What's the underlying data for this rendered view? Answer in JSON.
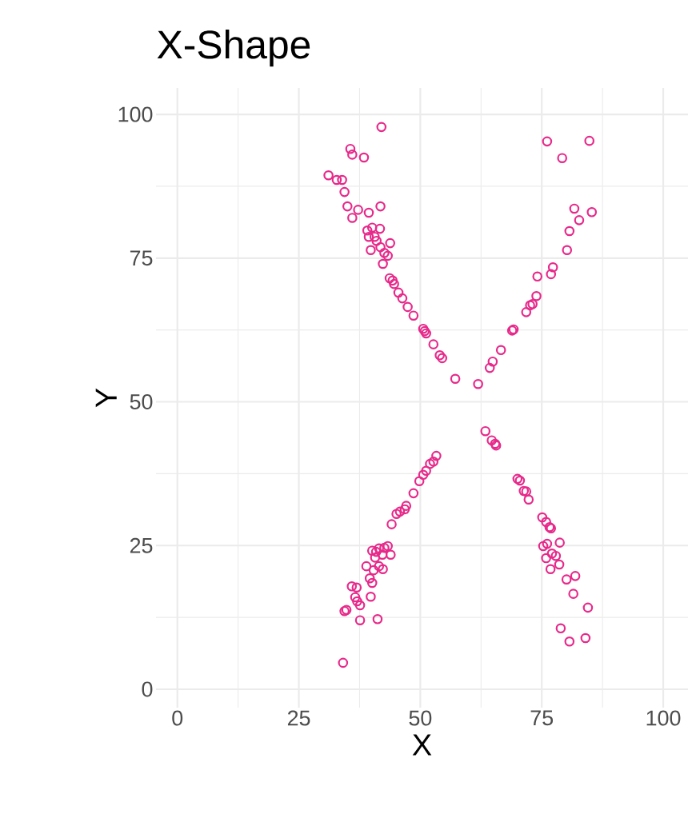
{
  "chart_data": {
    "type": "scatter",
    "title": "X-Shape",
    "xlabel": "X",
    "ylabel": "Y",
    "xlim": [
      -4.4,
      105.1
    ],
    "ylim": [
      -3.2,
      104.6
    ],
    "xticks": [
      0,
      25,
      50,
      75,
      100
    ],
    "yticks": [
      0,
      25,
      50,
      75,
      100
    ],
    "grid": true,
    "marker": "circle",
    "color": "#e7298a",
    "x": [
      42,
      35.6,
      36,
      38.4,
      31.1,
      32.8,
      33.9,
      34.4,
      35,
      36,
      37.2,
      39.4,
      41.8,
      39.1,
      39.4,
      39.8,
      40.1,
      40.6,
      41,
      41.7,
      41.8,
      42.6,
      42.3,
      43.8,
      43.3,
      43.7,
      44.3,
      44.6,
      45.5,
      46.3,
      47.4,
      48.6,
      50.6,
      50.9,
      51.2,
      52.7,
      54,
      54.5,
      57.2,
      61.9,
      64.3,
      64.9,
      66.6,
      68.9,
      69.2,
      71.8,
      72.6,
      73.1,
      73.9,
      74.1,
      76.9,
      77.3,
      80.2,
      80.7,
      81.7,
      82.7,
      85.3,
      76.1,
      79.2,
      84.8,
      34.1,
      34.4,
      34.8,
      37.6,
      41.2,
      35.9,
      36.9,
      36.6,
      37,
      37.6,
      39.8,
      40.1,
      38.9,
      39.6,
      40.4,
      40.7,
      41.5,
      42.3,
      40.1,
      40.9,
      41.5,
      42.6,
      43.3,
      43.9,
      42.2,
      44.1,
      45.1,
      45.8,
      46.8,
      47.1,
      48.6,
      49.8,
      50.6,
      51.2,
      52,
      52.7,
      53.3,
      63.4,
      64.7,
      65.4,
      65.6,
      70,
      70.5,
      71.3,
      71.8,
      72.3,
      75.1,
      75.9,
      76.6,
      76.9,
      75.3,
      76.1,
      78.7,
      75.9,
      77.1,
      77.9,
      78.6,
      76.8,
      80.1,
      81.9,
      81.5,
      84.5,
      78.9,
      80.7,
      84
    ],
    "values": [
      97.8,
      94,
      93,
      92.5,
      89.4,
      88.6,
      88.6,
      86.5,
      84,
      82,
      83.4,
      82.9,
      84,
      79.8,
      78.7,
      76.4,
      80.3,
      78.7,
      78,
      80.1,
      76.9,
      75.9,
      74,
      77.6,
      75.4,
      71.5,
      71.1,
      70.5,
      69,
      68,
      66.5,
      65,
      62.7,
      62.3,
      61.9,
      60,
      58.1,
      57.6,
      54,
      53.1,
      55.9,
      57,
      59,
      62.4,
      62.6,
      65.6,
      66.8,
      67,
      68.4,
      71.8,
      72.2,
      73.4,
      76.4,
      79.7,
      83.6,
      81.6,
      83,
      95.3,
      92.4,
      95.4,
      4.6,
      13.6,
      13.8,
      12,
      12.2,
      17.9,
      17.7,
      16,
      15.3,
      14.6,
      16.1,
      18.5,
      21.4,
      19.3,
      20.7,
      22.9,
      21.4,
      20.9,
      24.1,
      23.9,
      24.5,
      24.6,
      24.9,
      23.4,
      23.4,
      28.7,
      30.5,
      30.9,
      31.3,
      31.9,
      34.1,
      36.2,
      37.3,
      38,
      39.2,
      39.6,
      40.6,
      44.9,
      43.3,
      42.7,
      42.4,
      36.6,
      36.3,
      34.5,
      34.4,
      33,
      29.9,
      29.1,
      28.2,
      28,
      24.9,
      25.3,
      25.5,
      22.8,
      23.6,
      23.2,
      21.7,
      20.9,
      19.1,
      19.7,
      16.6,
      14.2,
      10.6,
      8.3,
      8.9
    ]
  }
}
